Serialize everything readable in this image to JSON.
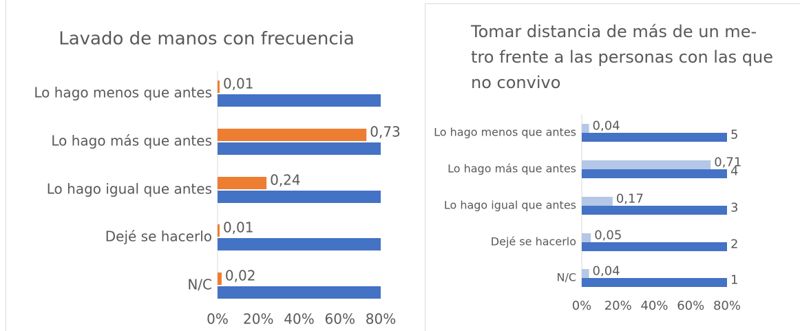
{
  "chart_data": [
    {
      "type": "bar",
      "orientation": "horizontal",
      "title": [
        "Lavado de manos con frecuencia"
      ],
      "categories": [
        "Lo hago menos que antes",
        "Lo hago más que antes",
        "Lo hago igual que antes",
        "Dejé se hacerlo",
        "N/C"
      ],
      "series": [
        {
          "color": "#ed7d31",
          "values": [
            1,
            73,
            24,
            1,
            2
          ],
          "value_labels": [
            "0,01",
            "0,73",
            "0,24",
            "0,01",
            "0,02"
          ]
        },
        {
          "color": "#4472c4",
          "values": [
            80,
            80,
            80,
            80,
            80
          ]
        }
      ],
      "xlim": [
        0,
        80
      ],
      "xticks": [
        {
          "value": 0,
          "label": "0%"
        },
        {
          "value": 20,
          "label": "20%"
        },
        {
          "value": 40,
          "label": "40%"
        },
        {
          "value": 60,
          "label": "60%"
        },
        {
          "value": 80,
          "label": "80%"
        }
      ]
    },
    {
      "type": "bar",
      "orientation": "horizontal",
      "title": [
        "Tomar distancia de más de un me-",
        "tro frente a las personas con las que",
        "no convivo"
      ],
      "categories": [
        "Lo hago menos que antes",
        "Lo hago más que antes",
        "Lo hago igual que antes",
        "Dejé se hacerlo",
        "N/C"
      ],
      "series": [
        {
          "color": "#b4c7e7",
          "values": [
            4,
            71,
            17,
            5,
            4
          ],
          "value_labels": [
            "0,04",
            "0,71",
            "0,17",
            "0,05",
            "0,04"
          ]
        },
        {
          "color": "#4472c4",
          "values": [
            500,
            400,
            300,
            200,
            100
          ],
          "value_labels": [
            "5",
            "4",
            "3",
            "2",
            "1"
          ]
        }
      ],
      "xlim": [
        0,
        80
      ],
      "xticks": [
        {
          "value": 0,
          "label": "0%"
        },
        {
          "value": 20,
          "label": "20%"
        },
        {
          "value": 40,
          "label": "40%"
        },
        {
          "value": 60,
          "label": "60%"
        },
        {
          "value": 80,
          "label": "80%"
        }
      ]
    }
  ]
}
